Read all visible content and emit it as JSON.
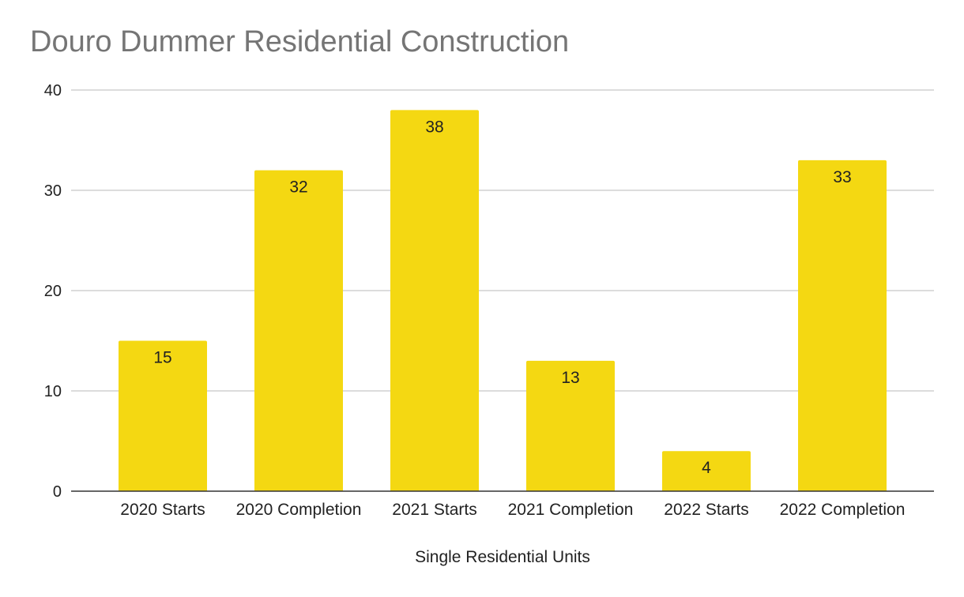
{
  "chart_data": {
    "type": "bar",
    "title": "Douro Dummer Residential Construction",
    "xlabel": "Single Residential Units",
    "ylabel": "",
    "categories": [
      "2020 Starts",
      "2020 Completion",
      "2021 Starts",
      "2021 Completion",
      "2022 Starts",
      "2022 Completion"
    ],
    "values": [
      15,
      32,
      38,
      13,
      4,
      33
    ],
    "ylim": [
      0,
      40
    ],
    "yticks": [
      0,
      10,
      20,
      30,
      40
    ],
    "grid": true,
    "legend": "none",
    "bar_color": "#f4d812",
    "data_labels": true
  }
}
